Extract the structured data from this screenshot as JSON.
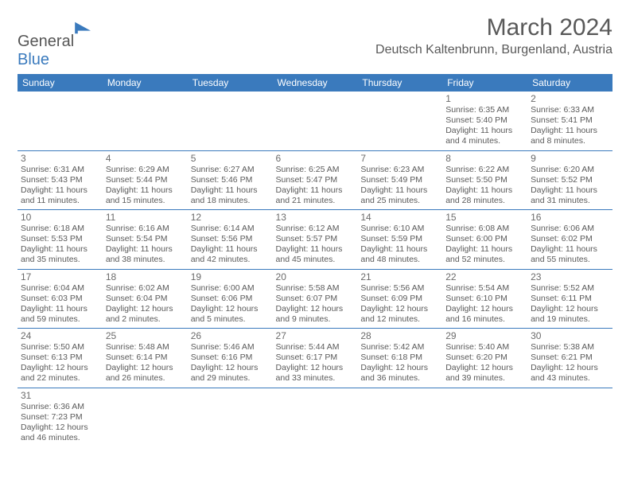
{
  "logo": {
    "word1": "General",
    "word2": "Blue"
  },
  "title": "March 2024",
  "location": "Deutsch Kaltenbrunn, Burgenland, Austria",
  "colors": {
    "header_bg": "#3a7abd",
    "header_text": "#ffffff",
    "grid_line": "#3a7abd",
    "body_text": "#5a5a5a",
    "title_text": "#595959",
    "logo_gray": "#555555",
    "logo_blue": "#3a7abd",
    "page_bg": "#ffffff"
  },
  "typography": {
    "title_fontsize": 30,
    "location_fontsize": 16,
    "header_fontsize": 12,
    "daynum_fontsize": 12,
    "cell_fontsize": 10.5,
    "logo_fontsize": 20
  },
  "layout": {
    "columns": 7,
    "rows": 6,
    "first_day_column": 5
  },
  "weekdays": [
    "Sunday",
    "Monday",
    "Tuesday",
    "Wednesday",
    "Thursday",
    "Friday",
    "Saturday"
  ],
  "days": [
    {
      "n": "1",
      "sr": "Sunrise: 6:35 AM",
      "ss": "Sunset: 5:40 PM",
      "dl": "Daylight: 11 hours and 4 minutes."
    },
    {
      "n": "2",
      "sr": "Sunrise: 6:33 AM",
      "ss": "Sunset: 5:41 PM",
      "dl": "Daylight: 11 hours and 8 minutes."
    },
    {
      "n": "3",
      "sr": "Sunrise: 6:31 AM",
      "ss": "Sunset: 5:43 PM",
      "dl": "Daylight: 11 hours and 11 minutes."
    },
    {
      "n": "4",
      "sr": "Sunrise: 6:29 AM",
      "ss": "Sunset: 5:44 PM",
      "dl": "Daylight: 11 hours and 15 minutes."
    },
    {
      "n": "5",
      "sr": "Sunrise: 6:27 AM",
      "ss": "Sunset: 5:46 PM",
      "dl": "Daylight: 11 hours and 18 minutes."
    },
    {
      "n": "6",
      "sr": "Sunrise: 6:25 AM",
      "ss": "Sunset: 5:47 PM",
      "dl": "Daylight: 11 hours and 21 minutes."
    },
    {
      "n": "7",
      "sr": "Sunrise: 6:23 AM",
      "ss": "Sunset: 5:49 PM",
      "dl": "Daylight: 11 hours and 25 minutes."
    },
    {
      "n": "8",
      "sr": "Sunrise: 6:22 AM",
      "ss": "Sunset: 5:50 PM",
      "dl": "Daylight: 11 hours and 28 minutes."
    },
    {
      "n": "9",
      "sr": "Sunrise: 6:20 AM",
      "ss": "Sunset: 5:52 PM",
      "dl": "Daylight: 11 hours and 31 minutes."
    },
    {
      "n": "10",
      "sr": "Sunrise: 6:18 AM",
      "ss": "Sunset: 5:53 PM",
      "dl": "Daylight: 11 hours and 35 minutes."
    },
    {
      "n": "11",
      "sr": "Sunrise: 6:16 AM",
      "ss": "Sunset: 5:54 PM",
      "dl": "Daylight: 11 hours and 38 minutes."
    },
    {
      "n": "12",
      "sr": "Sunrise: 6:14 AM",
      "ss": "Sunset: 5:56 PM",
      "dl": "Daylight: 11 hours and 42 minutes."
    },
    {
      "n": "13",
      "sr": "Sunrise: 6:12 AM",
      "ss": "Sunset: 5:57 PM",
      "dl": "Daylight: 11 hours and 45 minutes."
    },
    {
      "n": "14",
      "sr": "Sunrise: 6:10 AM",
      "ss": "Sunset: 5:59 PM",
      "dl": "Daylight: 11 hours and 48 minutes."
    },
    {
      "n": "15",
      "sr": "Sunrise: 6:08 AM",
      "ss": "Sunset: 6:00 PM",
      "dl": "Daylight: 11 hours and 52 minutes."
    },
    {
      "n": "16",
      "sr": "Sunrise: 6:06 AM",
      "ss": "Sunset: 6:02 PM",
      "dl": "Daylight: 11 hours and 55 minutes."
    },
    {
      "n": "17",
      "sr": "Sunrise: 6:04 AM",
      "ss": "Sunset: 6:03 PM",
      "dl": "Daylight: 11 hours and 59 minutes."
    },
    {
      "n": "18",
      "sr": "Sunrise: 6:02 AM",
      "ss": "Sunset: 6:04 PM",
      "dl": "Daylight: 12 hours and 2 minutes."
    },
    {
      "n": "19",
      "sr": "Sunrise: 6:00 AM",
      "ss": "Sunset: 6:06 PM",
      "dl": "Daylight: 12 hours and 5 minutes."
    },
    {
      "n": "20",
      "sr": "Sunrise: 5:58 AM",
      "ss": "Sunset: 6:07 PM",
      "dl": "Daylight: 12 hours and 9 minutes."
    },
    {
      "n": "21",
      "sr": "Sunrise: 5:56 AM",
      "ss": "Sunset: 6:09 PM",
      "dl": "Daylight: 12 hours and 12 minutes."
    },
    {
      "n": "22",
      "sr": "Sunrise: 5:54 AM",
      "ss": "Sunset: 6:10 PM",
      "dl": "Daylight: 12 hours and 16 minutes."
    },
    {
      "n": "23",
      "sr": "Sunrise: 5:52 AM",
      "ss": "Sunset: 6:11 PM",
      "dl": "Daylight: 12 hours and 19 minutes."
    },
    {
      "n": "24",
      "sr": "Sunrise: 5:50 AM",
      "ss": "Sunset: 6:13 PM",
      "dl": "Daylight: 12 hours and 22 minutes."
    },
    {
      "n": "25",
      "sr": "Sunrise: 5:48 AM",
      "ss": "Sunset: 6:14 PM",
      "dl": "Daylight: 12 hours and 26 minutes."
    },
    {
      "n": "26",
      "sr": "Sunrise: 5:46 AM",
      "ss": "Sunset: 6:16 PM",
      "dl": "Daylight: 12 hours and 29 minutes."
    },
    {
      "n": "27",
      "sr": "Sunrise: 5:44 AM",
      "ss": "Sunset: 6:17 PM",
      "dl": "Daylight: 12 hours and 33 minutes."
    },
    {
      "n": "28",
      "sr": "Sunrise: 5:42 AM",
      "ss": "Sunset: 6:18 PM",
      "dl": "Daylight: 12 hours and 36 minutes."
    },
    {
      "n": "29",
      "sr": "Sunrise: 5:40 AM",
      "ss": "Sunset: 6:20 PM",
      "dl": "Daylight: 12 hours and 39 minutes."
    },
    {
      "n": "30",
      "sr": "Sunrise: 5:38 AM",
      "ss": "Sunset: 6:21 PM",
      "dl": "Daylight: 12 hours and 43 minutes."
    },
    {
      "n": "31",
      "sr": "Sunrise: 6:36 AM",
      "ss": "Sunset: 7:23 PM",
      "dl": "Daylight: 12 hours and 46 minutes."
    }
  ]
}
